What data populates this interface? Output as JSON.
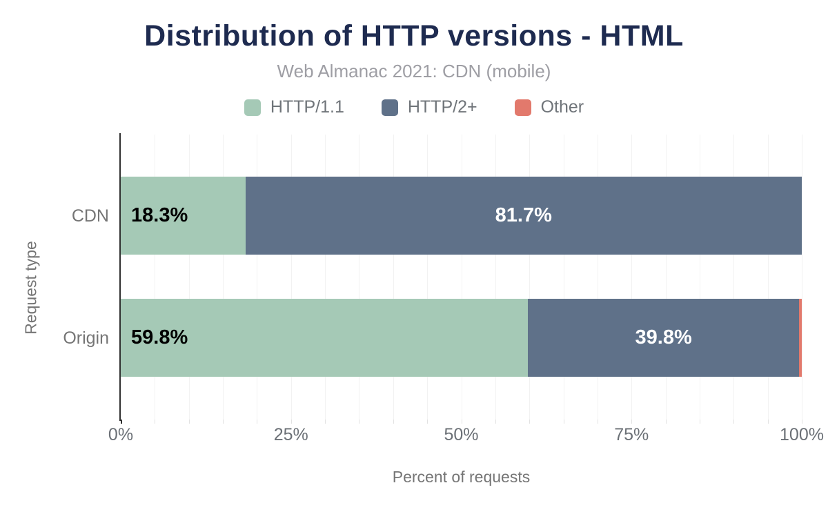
{
  "chart_data": {
    "type": "bar",
    "orientation": "horizontal",
    "stacked": true,
    "title": "Distribution of HTTP versions - HTML",
    "subtitle": "Web Almanac 2021: CDN (mobile)",
    "categories": [
      "CDN",
      "Origin"
    ],
    "series": [
      {
        "name": "HTTP/1.1",
        "color": "#a5c9b6",
        "values": [
          18.3,
          59.8
        ]
      },
      {
        "name": "HTTP/2+",
        "color": "#5f7189",
        "values": [
          81.7,
          39.8
        ]
      },
      {
        "name": "Other",
        "color": "#e2796c",
        "values": [
          0.0,
          0.4
        ]
      }
    ],
    "value_labels": [
      [
        "18.3%",
        "81.7%",
        ""
      ],
      [
        "59.8%",
        "39.8%",
        ""
      ]
    ],
    "xlabel": "Percent of requests",
    "ylabel": "Request type",
    "xlim": [
      0,
      100
    ],
    "x_ticks": [
      {
        "value": 0,
        "label": "0%"
      },
      {
        "value": 25,
        "label": "25%"
      },
      {
        "value": 50,
        "label": "50%"
      },
      {
        "value": 75,
        "label": "75%"
      },
      {
        "value": 100,
        "label": "100%"
      }
    ],
    "gridline_step_pct": 5,
    "legend_position": "top",
    "grid": true,
    "colors": {
      "title": "#1e2b50",
      "subtitle": "#9e9ea4",
      "axis_text": "#757575",
      "gridline": "#f2f2f2",
      "axis_line": "#2f2f2f",
      "value_label_on_light": "#000000",
      "value_label_on_dark": "#ffffff"
    }
  }
}
